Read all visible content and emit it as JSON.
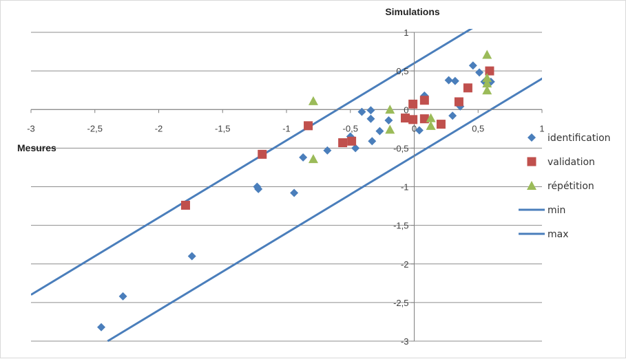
{
  "chart_data": {
    "type": "scatter",
    "xlabel": "Mesures",
    "ylabel": "Simulations",
    "xlim": [
      -3,
      1
    ],
    "ylim": [
      -3,
      1
    ],
    "x_ticks": [
      -3,
      -2.5,
      -2,
      -1.5,
      -1,
      -0.5,
      0,
      0.5,
      1
    ],
    "y_ticks": [
      -3,
      -2.5,
      -2,
      -1.5,
      -1,
      -0.5,
      0,
      0.5,
      1
    ],
    "x_tick_labels": [
      "-3",
      "-2,5",
      "-2",
      "-1,5",
      "-1",
      "-0,5",
      "0",
      "0,5",
      "1"
    ],
    "y_tick_labels": [
      "-3",
      "-2,5",
      "-2",
      "-1,5",
      "-1",
      "-0,5",
      "0",
      "0,5",
      "1"
    ],
    "grid": "horizontal",
    "legend_position": "right",
    "series": [
      {
        "name": "identification",
        "marker": "diamond",
        "color": "#4a7ebb",
        "points": [
          [
            -2.45,
            -2.82
          ],
          [
            -2.28,
            -2.42
          ],
          [
            -1.74,
            -1.9
          ],
          [
            -1.23,
            -1.0
          ],
          [
            -1.22,
            -1.03
          ],
          [
            -0.94,
            -1.08
          ],
          [
            -0.87,
            -0.62
          ],
          [
            -0.68,
            -0.53
          ],
          [
            -0.5,
            -0.35
          ],
          [
            -0.46,
            -0.5
          ],
          [
            -0.41,
            -0.03
          ],
          [
            -0.34,
            -0.01
          ],
          [
            -0.34,
            -0.12
          ],
          [
            -0.33,
            -0.41
          ],
          [
            -0.27,
            -0.28
          ],
          [
            -0.2,
            -0.14
          ],
          [
            0.04,
            -0.27
          ],
          [
            0.08,
            0.18
          ],
          [
            0.27,
            0.38
          ],
          [
            0.3,
            -0.08
          ],
          [
            0.32,
            0.37
          ],
          [
            0.36,
            0.04
          ],
          [
            0.46,
            0.57
          ],
          [
            0.51,
            0.48
          ],
          [
            0.55,
            0.36
          ],
          [
            0.6,
            0.36
          ]
        ]
      },
      {
        "name": "validation",
        "marker": "square",
        "color": "#c0504d",
        "points": [
          [
            -1.79,
            -1.24
          ],
          [
            -1.19,
            -0.58
          ],
          [
            -0.83,
            -0.21
          ],
          [
            -0.56,
            -0.43
          ],
          [
            -0.49,
            -0.41
          ],
          [
            -0.07,
            -0.11
          ],
          [
            -0.01,
            0.07
          ],
          [
            -0.01,
            -0.13
          ],
          [
            0.08,
            0.12
          ],
          [
            0.08,
            -0.12
          ],
          [
            0.21,
            -0.19
          ],
          [
            0.35,
            0.1
          ],
          [
            0.42,
            0.28
          ],
          [
            0.59,
            0.5
          ]
        ]
      },
      {
        "name": "répétition",
        "marker": "triangle",
        "color": "#9bbb59",
        "points": [
          [
            -0.79,
            0.11
          ],
          [
            -0.79,
            -0.64
          ],
          [
            -0.19,
            0.0
          ],
          [
            -0.19,
            -0.26
          ],
          [
            0.13,
            -0.11
          ],
          [
            0.13,
            -0.21
          ],
          [
            0.57,
            0.71
          ],
          [
            0.57,
            0.41
          ],
          [
            0.57,
            0.34
          ],
          [
            0.57,
            0.25
          ]
        ]
      },
      {
        "name": "min",
        "type": "line",
        "color": "#4a7ebb",
        "points": [
          [
            -3,
            -2.4
          ],
          [
            0.6,
            1.2
          ]
        ]
      },
      {
        "name": "max",
        "type": "line",
        "color": "#4a7ebb",
        "points": [
          [
            -2.4,
            -3.0
          ],
          [
            1.3,
            0.7
          ]
        ]
      }
    ]
  }
}
